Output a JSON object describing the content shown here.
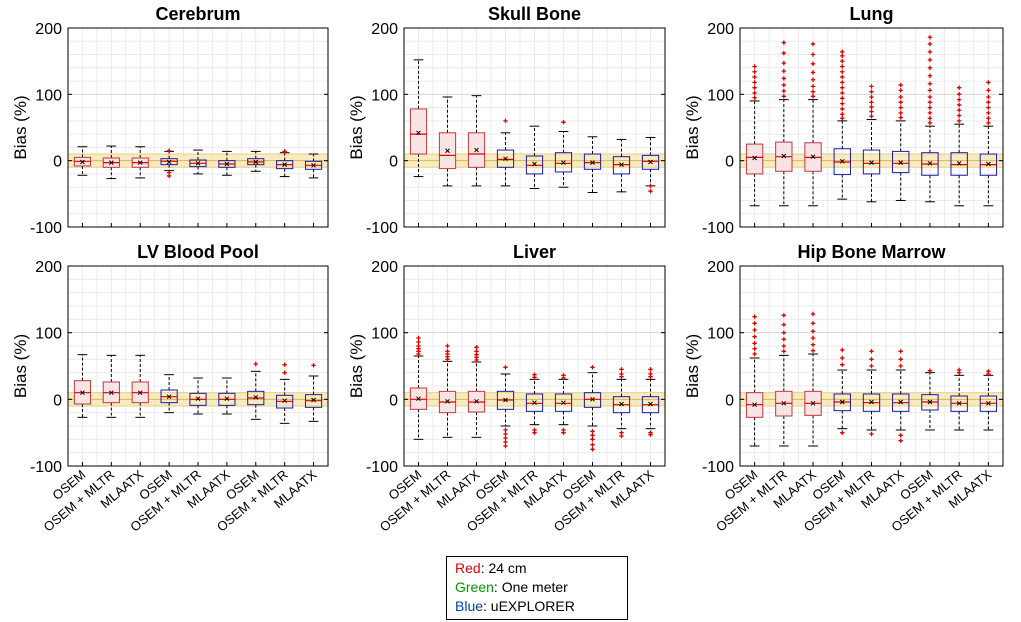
{
  "chart_data": [
    {
      "type": "box",
      "title": "Cerebrum",
      "ylabel": "Bias (%)",
      "ylim": [
        -100,
        200
      ],
      "yticks": [
        -100,
        0,
        100,
        200
      ],
      "show_x_labels": false,
      "boxes": [
        {
          "group": "Red",
          "method": "OSEM",
          "whisker_low": -22,
          "q1": -8,
          "median": -1,
          "q3": 5,
          "whisker_high": 21,
          "mean": -2,
          "outliers": []
        },
        {
          "group": "Red",
          "method": "OSEM + MLTR",
          "whisker_low": -27,
          "q1": -10,
          "median": -3,
          "q3": 4,
          "whisker_high": 22,
          "mean": -3,
          "outliers": []
        },
        {
          "group": "Red",
          "method": "MLAATX",
          "whisker_low": -26,
          "q1": -10,
          "median": -3,
          "q3": 4,
          "whisker_high": 21,
          "mean": -3,
          "outliers": []
        },
        {
          "group": "Green",
          "method": "OSEM",
          "whisker_low": -15,
          "q1": -6,
          "median": -1,
          "q3": 3,
          "whisker_high": 14,
          "mean": -2,
          "outliers": [
            -23,
            -18,
            15
          ]
        },
        {
          "group": "Green",
          "method": "OSEM + MLTR",
          "whisker_low": -20,
          "q1": -9,
          "median": -4,
          "q3": 1,
          "whisker_high": 16,
          "mean": -4,
          "outliers": []
        },
        {
          "group": "Green",
          "method": "MLAATX",
          "whisker_low": -22,
          "q1": -10,
          "median": -5,
          "q3": 0,
          "whisker_high": 14,
          "mean": -5,
          "outliers": []
        },
        {
          "group": "Blue",
          "method": "OSEM",
          "whisker_low": -16,
          "q1": -6,
          "median": -2,
          "q3": 3,
          "whisker_high": 14,
          "mean": -2,
          "outliers": []
        },
        {
          "group": "Blue",
          "method": "OSEM + MLTR",
          "whisker_low": -24,
          "q1": -12,
          "median": -6,
          "q3": 0,
          "whisker_high": 12,
          "mean": -6,
          "outliers": [
            14
          ]
        },
        {
          "group": "Blue",
          "method": "MLAATX",
          "whisker_low": -26,
          "q1": -13,
          "median": -7,
          "q3": -1,
          "whisker_high": 10,
          "mean": -7,
          "outliers": []
        }
      ]
    },
    {
      "type": "box",
      "title": "Skull Bone",
      "ylabel": "Bias (%)",
      "ylim": [
        -100,
        200
      ],
      "yticks": [
        -100,
        0,
        100,
        200
      ],
      "show_x_labels": false,
      "boxes": [
        {
          "group": "Red",
          "method": "OSEM",
          "whisker_low": -24,
          "q1": 10,
          "median": 40,
          "q3": 78,
          "whisker_high": 152,
          "mean": 42,
          "outliers": []
        },
        {
          "group": "Red",
          "method": "OSEM + MLTR",
          "whisker_low": -38,
          "q1": -12,
          "median": 8,
          "q3": 42,
          "whisker_high": 96,
          "mean": 15,
          "outliers": []
        },
        {
          "group": "Red",
          "method": "MLAATX",
          "whisker_low": -38,
          "q1": -10,
          "median": 10,
          "q3": 42,
          "whisker_high": 98,
          "mean": 16,
          "outliers": []
        },
        {
          "group": "Green",
          "method": "OSEM",
          "whisker_low": -38,
          "q1": -10,
          "median": 2,
          "q3": 16,
          "whisker_high": 42,
          "mean": 3,
          "outliers": [
            60
          ]
        },
        {
          "group": "Green",
          "method": "OSEM + MLTR",
          "whisker_low": -42,
          "q1": -20,
          "median": -7,
          "q3": 7,
          "whisker_high": 52,
          "mean": -5,
          "outliers": []
        },
        {
          "group": "Green",
          "method": "MLAATX",
          "whisker_low": -40,
          "q1": -17,
          "median": -4,
          "q3": 12,
          "whisker_high": 44,
          "mean": -3,
          "outliers": [
            58
          ]
        },
        {
          "group": "Blue",
          "method": "OSEM",
          "whisker_low": -48,
          "q1": -13,
          "median": -3,
          "q3": 10,
          "whisker_high": 36,
          "mean": -3,
          "outliers": []
        },
        {
          "group": "Blue",
          "method": "OSEM + MLTR",
          "whisker_low": -47,
          "q1": -20,
          "median": -6,
          "q3": 6,
          "whisker_high": 32,
          "mean": -6,
          "outliers": []
        },
        {
          "group": "Blue",
          "method": "MLAATX",
          "whisker_low": -38,
          "q1": -13,
          "median": -1,
          "q3": 8,
          "whisker_high": 35,
          "mean": -2,
          "outliers": [
            -46,
            -38
          ]
        }
      ]
    },
    {
      "type": "box",
      "title": "Lung",
      "ylabel": "Bias (%)",
      "ylim": [
        -100,
        200
      ],
      "yticks": [
        -100,
        0,
        100,
        200
      ],
      "show_x_labels": false,
      "boxes": [
        {
          "group": "Red",
          "method": "OSEM",
          "whisker_low": -68,
          "q1": -20,
          "median": 5,
          "q3": 25,
          "whisker_high": 90,
          "mean": 4,
          "outliers": [
            95,
            102,
            110,
            118,
            126,
            134,
            142
          ]
        },
        {
          "group": "Red",
          "method": "OSEM + MLTR",
          "whisker_low": -68,
          "q1": -16,
          "median": 6,
          "q3": 28,
          "whisker_high": 92,
          "mean": 7,
          "outliers": [
            97,
            105,
            114,
            124,
            135,
            147,
            162,
            178
          ]
        },
        {
          "group": "Red",
          "method": "MLAATX",
          "whisker_low": -68,
          "q1": -16,
          "median": 5,
          "q3": 27,
          "whisker_high": 92,
          "mean": 6,
          "outliers": [
            97,
            104,
            112,
            122,
            133,
            146,
            160,
            176
          ]
        },
        {
          "group": "Green",
          "method": "OSEM",
          "whisker_low": -58,
          "q1": -21,
          "median": -2,
          "q3": 18,
          "whisker_high": 60,
          "mean": -1,
          "outliers": [
            64,
            70,
            78,
            86,
            94,
            102,
            110,
            118,
            126,
            134,
            142,
            150,
            158,
            164
          ]
        },
        {
          "group": "Green",
          "method": "OSEM + MLTR",
          "whisker_low": -62,
          "q1": -20,
          "median": -4,
          "q3": 16,
          "whisker_high": 62,
          "mean": -3,
          "outliers": [
            67,
            74,
            81,
            88,
            96,
            104,
            112
          ]
        },
        {
          "group": "Green",
          "method": "MLAATX",
          "whisker_low": -60,
          "q1": -18,
          "median": -4,
          "q3": 14,
          "whisker_high": 60,
          "mean": -3,
          "outliers": [
            65,
            72,
            80,
            88,
            96,
            106,
            114
          ]
        },
        {
          "group": "Blue",
          "method": "OSEM",
          "whisker_low": -62,
          "q1": -22,
          "median": -5,
          "q3": 12,
          "whisker_high": 52,
          "mean": -4,
          "outliers": [
            57,
            64,
            72,
            80,
            88,
            96,
            106,
            116,
            128,
            140,
            152,
            164,
            176,
            186
          ]
        },
        {
          "group": "Blue",
          "method": "OSEM + MLTR",
          "whisker_low": -68,
          "q1": -22,
          "median": -6,
          "q3": 12,
          "whisker_high": 55,
          "mean": -4,
          "outliers": [
            60,
            68,
            76,
            84,
            92,
            100,
            110
          ]
        },
        {
          "group": "Blue",
          "method": "MLAATX",
          "whisker_low": -68,
          "q1": -22,
          "median": -6,
          "q3": 10,
          "whisker_high": 52,
          "mean": -5,
          "outliers": [
            57,
            64,
            72,
            80,
            88,
            96,
            106,
            118
          ]
        }
      ]
    },
    {
      "type": "box",
      "title": "LV Blood Pool",
      "ylabel": "Bias (%)",
      "ylim": [
        -100,
        200
      ],
      "yticks": [
        -100,
        0,
        100,
        200
      ],
      "show_x_labels": true,
      "boxes": [
        {
          "group": "Red",
          "method": "OSEM",
          "whisker_low": -27,
          "q1": -7,
          "median": 10,
          "q3": 28,
          "whisker_high": 67,
          "mean": 10,
          "outliers": []
        },
        {
          "group": "Red",
          "method": "OSEM + MLTR",
          "whisker_low": -27,
          "q1": -5,
          "median": 10,
          "q3": 26,
          "whisker_high": 66,
          "mean": 10,
          "outliers": []
        },
        {
          "group": "Red",
          "method": "MLAATX",
          "whisker_low": -27,
          "q1": -5,
          "median": 10,
          "q3": 26,
          "whisker_high": 66,
          "mean": 10,
          "outliers": []
        },
        {
          "group": "Green",
          "method": "OSEM",
          "whisker_low": -20,
          "q1": -5,
          "median": 4,
          "q3": 14,
          "whisker_high": 37,
          "mean": 4,
          "outliers": []
        },
        {
          "group": "Green",
          "method": "OSEM + MLTR",
          "whisker_low": -22,
          "q1": -9,
          "median": 0,
          "q3": 9,
          "whisker_high": 32,
          "mean": 1,
          "outliers": []
        },
        {
          "group": "Green",
          "method": "MLAATX",
          "whisker_low": -22,
          "q1": -9,
          "median": 0,
          "q3": 9,
          "whisker_high": 32,
          "mean": 1,
          "outliers": []
        },
        {
          "group": "Blue",
          "method": "OSEM",
          "whisker_low": -30,
          "q1": -8,
          "median": 2,
          "q3": 12,
          "whisker_high": 42,
          "mean": 3,
          "outliers": [
            53
          ]
        },
        {
          "group": "Blue",
          "method": "OSEM + MLTR",
          "whisker_low": -36,
          "q1": -13,
          "median": -3,
          "q3": 6,
          "whisker_high": 30,
          "mean": -2,
          "outliers": [
            40,
            52
          ]
        },
        {
          "group": "Blue",
          "method": "MLAATX",
          "whisker_low": -33,
          "q1": -12,
          "median": -2,
          "q3": 7,
          "whisker_high": 35,
          "mean": -1,
          "outliers": [
            51
          ]
        }
      ]
    },
    {
      "type": "box",
      "title": "Liver",
      "ylabel": "Bias (%)",
      "ylim": [
        -100,
        200
      ],
      "yticks": [
        -100,
        0,
        100,
        200
      ],
      "show_x_labels": true,
      "boxes": [
        {
          "group": "Red",
          "method": "OSEM",
          "whisker_low": -60,
          "q1": -15,
          "median": 0,
          "q3": 17,
          "whisker_high": 65,
          "mean": 1,
          "outliers": [
            68,
            72,
            76,
            80,
            86,
            92
          ]
        },
        {
          "group": "Red",
          "method": "OSEM + MLTR",
          "whisker_low": -57,
          "q1": -20,
          "median": -4,
          "q3": 12,
          "whisker_high": 57,
          "mean": -3,
          "outliers": [
            60,
            64,
            68,
            72,
            80
          ]
        },
        {
          "group": "Red",
          "method": "MLAATX",
          "whisker_low": -57,
          "q1": -19,
          "median": -4,
          "q3": 12,
          "whisker_high": 56,
          "mean": -3,
          "outliers": [
            59,
            63,
            67,
            72,
            78
          ]
        },
        {
          "group": "Green",
          "method": "OSEM",
          "whisker_low": -40,
          "q1": -15,
          "median": -1,
          "q3": 12,
          "whisker_high": 38,
          "mean": -1,
          "outliers": [
            -70,
            -64,
            -58,
            -52,
            -46,
            48
          ]
        },
        {
          "group": "Green",
          "method": "OSEM + MLTR",
          "whisker_low": -38,
          "q1": -18,
          "median": -6,
          "q3": 8,
          "whisker_high": 30,
          "mean": -5,
          "outliers": [
            -50,
            -46,
            33,
            37
          ]
        },
        {
          "group": "Green",
          "method": "MLAATX",
          "whisker_low": -38,
          "q1": -18,
          "median": -6,
          "q3": 8,
          "whisker_high": 30,
          "mean": -5,
          "outliers": [
            -50,
            -46,
            32,
            36
          ]
        },
        {
          "group": "Blue",
          "method": "OSEM",
          "whisker_low": -40,
          "q1": -12,
          "median": 0,
          "q3": 10,
          "whisker_high": 40,
          "mean": 0,
          "outliers": [
            -75,
            -68,
            -60,
            -54,
            -48,
            48
          ]
        },
        {
          "group": "Blue",
          "method": "OSEM + MLTR",
          "whisker_low": -44,
          "q1": -20,
          "median": -8,
          "q3": 4,
          "whisker_high": 30,
          "mean": -7,
          "outliers": [
            -55,
            -50,
            34,
            38,
            45
          ]
        },
        {
          "group": "Blue",
          "method": "MLAATX",
          "whisker_low": -44,
          "q1": -20,
          "median": -8,
          "q3": 4,
          "whisker_high": 30,
          "mean": -7,
          "outliers": [
            -53,
            -50,
            34,
            38,
            45
          ]
        }
      ]
    },
    {
      "type": "box",
      "title": "Hip Bone Marrow",
      "ylabel": "Bias (%)",
      "ylim": [
        -100,
        200
      ],
      "yticks": [
        -100,
        0,
        100,
        200
      ],
      "show_x_labels": true,
      "boxes": [
        {
          "group": "Red",
          "method": "OSEM",
          "whisker_low": -70,
          "q1": -27,
          "median": -8,
          "q3": 10,
          "whisker_high": 62,
          "mean": -8,
          "outliers": [
            68,
            76,
            84,
            94,
            104,
            114,
            124
          ]
        },
        {
          "group": "Red",
          "method": "OSEM + MLTR",
          "whisker_low": -70,
          "q1": -25,
          "median": -6,
          "q3": 12,
          "whisker_high": 66,
          "mean": -6,
          "outliers": [
            72,
            80,
            90,
            100,
            112,
            126
          ]
        },
        {
          "group": "Red",
          "method": "MLAATX",
          "whisker_low": -70,
          "q1": -24,
          "median": -6,
          "q3": 12,
          "whisker_high": 68,
          "mean": -6,
          "outliers": [
            73,
            82,
            92,
            102,
            114,
            128
          ]
        },
        {
          "group": "Green",
          "method": "OSEM",
          "whisker_low": -44,
          "q1": -17,
          "median": -4,
          "q3": 8,
          "whisker_high": 44,
          "mean": -4,
          "outliers": [
            -50,
            52,
            62,
            74
          ]
        },
        {
          "group": "Green",
          "method": "OSEM + MLTR",
          "whisker_low": -46,
          "q1": -18,
          "median": -5,
          "q3": 8,
          "whisker_high": 44,
          "mean": -4,
          "outliers": [
            -52,
            50,
            60,
            72
          ]
        },
        {
          "group": "Green",
          "method": "MLAATX",
          "whisker_low": -46,
          "q1": -18,
          "median": -5,
          "q3": 8,
          "whisker_high": 44,
          "mean": -4,
          "outliers": [
            -62,
            -54,
            50,
            60,
            72
          ]
        },
        {
          "group": "Blue",
          "method": "OSEM",
          "whisker_low": -46,
          "q1": -16,
          "median": -4,
          "q3": 7,
          "whisker_high": 40,
          "mean": -4,
          "outliers": [
            43
          ]
        },
        {
          "group": "Blue",
          "method": "OSEM + MLTR",
          "whisker_low": -46,
          "q1": -18,
          "median": -6,
          "q3": 5,
          "whisker_high": 36,
          "mean": -6,
          "outliers": [
            40,
            44
          ]
        },
        {
          "group": "Blue",
          "method": "MLAATX",
          "whisker_low": -46,
          "q1": -18,
          "median": -6,
          "q3": 5,
          "whisker_high": 36,
          "mean": -6,
          "outliers": [
            38,
            42
          ]
        }
      ]
    }
  ],
  "legend": {
    "items": [
      {
        "color_word": "Red",
        "label": ": 24 cm",
        "color": "#e8000b"
      },
      {
        "color_word": "Green",
        "label": ": One meter",
        "color": "#009a00"
      },
      {
        "color_word": "Blue",
        "label": ": uEXPLORER",
        "color": "#0044aa"
      }
    ]
  },
  "colors": {
    "red_box_fill": "#f8e4e4",
    "red_box_edge": "#c03a3a",
    "blue_box_edge": "#1a1aa8",
    "median": "#e00000",
    "mean": "#000000",
    "outlier": "#e00000",
    "band": "#f7e7b4",
    "band_edge": "#e6cf87",
    "grid": "#ebebeb"
  }
}
